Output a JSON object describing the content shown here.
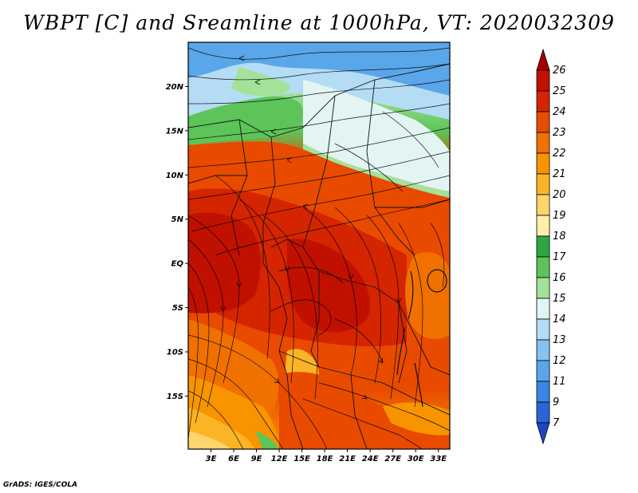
{
  "title": "WBPT [C] and Sreamline at 1000hPa, VT: 2020032309",
  "credit": "GrADS: IGES/COLA",
  "map": {
    "lat_labels": [
      "20N",
      "15N",
      "10N",
      "5N",
      "EQ",
      "5S",
      "10S",
      "15S"
    ],
    "lon_labels": [
      "3E",
      "6E",
      "9E",
      "12E",
      "15E",
      "18E",
      "21E",
      "24E",
      "27E",
      "30E",
      "33E"
    ],
    "lat_range": [
      -21,
      25
    ],
    "lon_range": [
      0,
      34.5
    ]
  },
  "colorbar": {
    "unit": "C",
    "levels": [
      "26",
      "25",
      "24",
      "23",
      "22",
      "21",
      "20",
      "19",
      "18",
      "17",
      "16",
      "15",
      "14",
      "13",
      "12",
      "11",
      "9",
      "7"
    ],
    "colors": [
      "#a50000",
      "#c01000",
      "#d42400",
      "#e84a00",
      "#f07000",
      "#f79400",
      "#fbb426",
      "#fdd56c",
      "#fef0ac",
      "#2ea646",
      "#5cc458",
      "#a4e29a",
      "#e2f5f2",
      "#b4dcf5",
      "#84c2f0",
      "#5aa6ea",
      "#3a86e3",
      "#2a64d6",
      "#1c46c4"
    ]
  }
}
